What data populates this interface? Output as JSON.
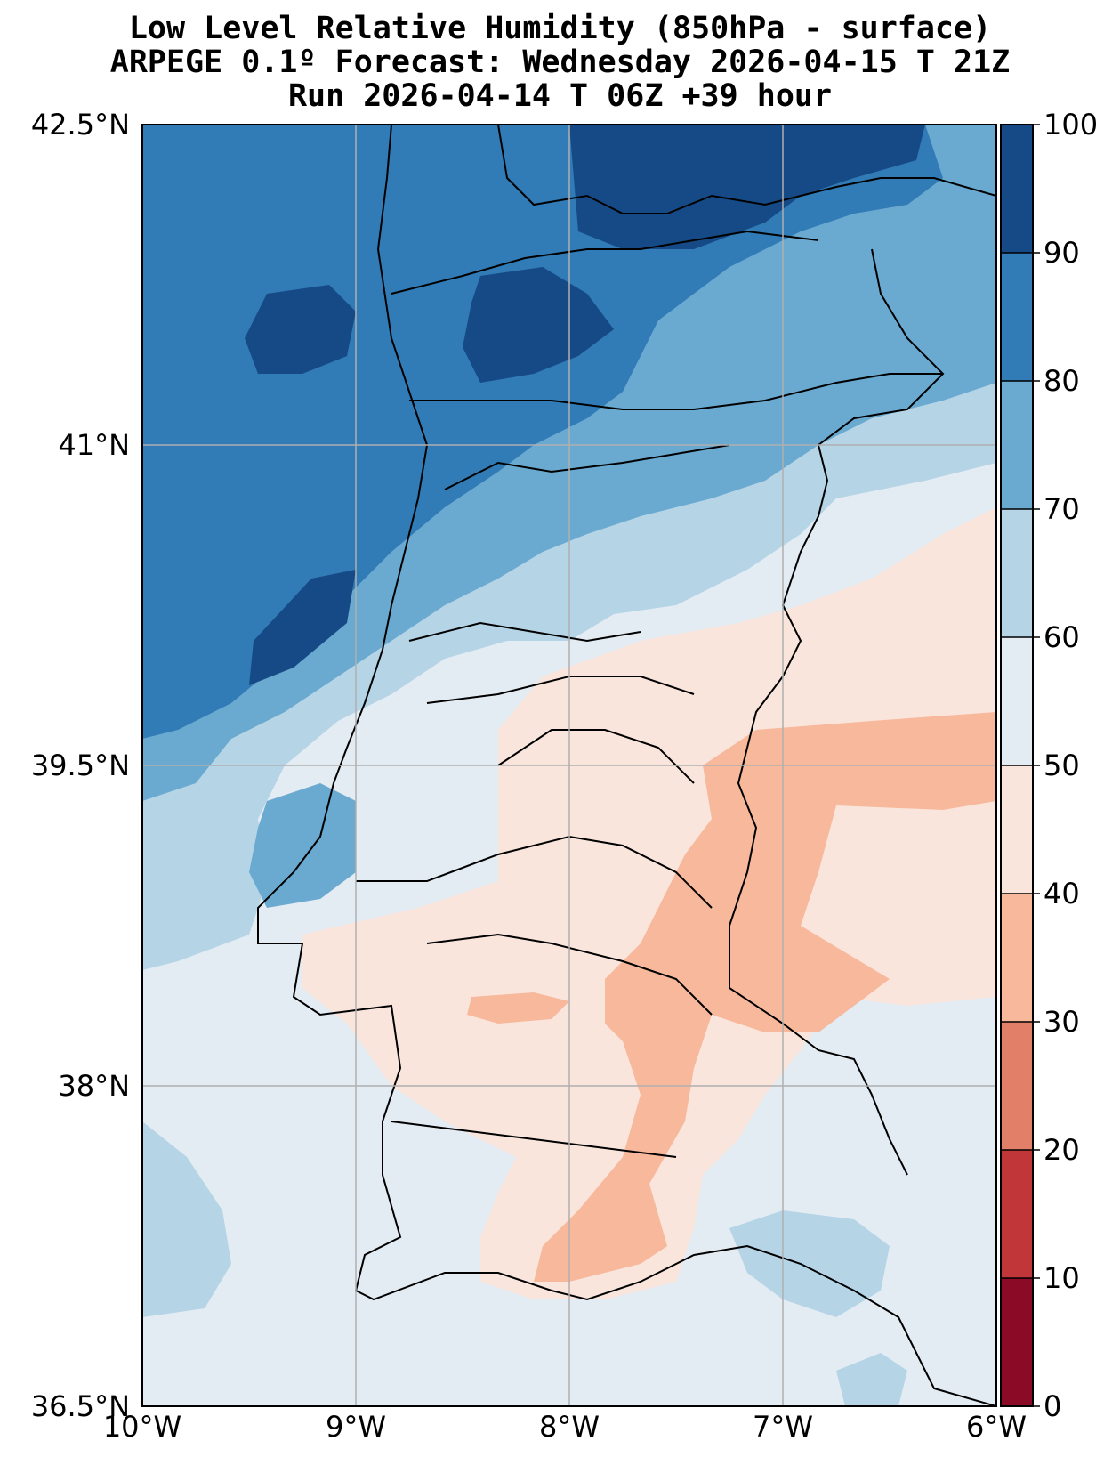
{
  "title": {
    "line1": "Low Level Relative Humidity (850hPa - surface)",
    "line2": "ARPEGE 0.1º Forecast: Wednesday 2026-04-15 T 21Z",
    "line3": "Run 2026-04-14 T 06Z +39 hour"
  },
  "map": {
    "lon_range": [
      -10,
      -6
    ],
    "lat_range": [
      36.5,
      42.5
    ],
    "x_ticks": [
      {
        "lon": -10,
        "label": "10°W"
      },
      {
        "lon": -9,
        "label": "9°W"
      },
      {
        "lon": -8,
        "label": "8°W"
      },
      {
        "lon": -7,
        "label": "7°W"
      },
      {
        "lon": -6,
        "label": "6°W"
      }
    ],
    "y_ticks": [
      {
        "lat": 42.5,
        "label": "42.5°N"
      },
      {
        "lat": 41,
        "label": "41°N"
      },
      {
        "lat": 39.5,
        "label": "39.5°N"
      },
      {
        "lat": 38,
        "label": "38°N"
      },
      {
        "lat": 36.5,
        "label": "36.5°N"
      }
    ],
    "grid": true
  },
  "colorbar": {
    "levels": [
      {
        "min": 0,
        "max": 10,
        "color": "#8b0a26"
      },
      {
        "min": 10,
        "max": 20,
        "color": "#c13639"
      },
      {
        "min": 20,
        "max": 30,
        "color": "#e27f68"
      },
      {
        "min": 30,
        "max": 40,
        "color": "#f7b89b"
      },
      {
        "min": 40,
        "max": 50,
        "color": "#f9e5dc"
      },
      {
        "min": 50,
        "max": 60,
        "color": "#e3ebf3"
      },
      {
        "min": 60,
        "max": 70,
        "color": "#b5d4e6"
      },
      {
        "min": 70,
        "max": 80,
        "color": "#6aa9d0"
      },
      {
        "min": 80,
        "max": 90,
        "color": "#317bb6"
      },
      {
        "min": 90,
        "max": 100,
        "color": "#164a86"
      }
    ],
    "tick_labels": [
      "0",
      "10",
      "20",
      "30",
      "40",
      "50",
      "60",
      "70",
      "80",
      "90",
      "100"
    ]
  }
}
